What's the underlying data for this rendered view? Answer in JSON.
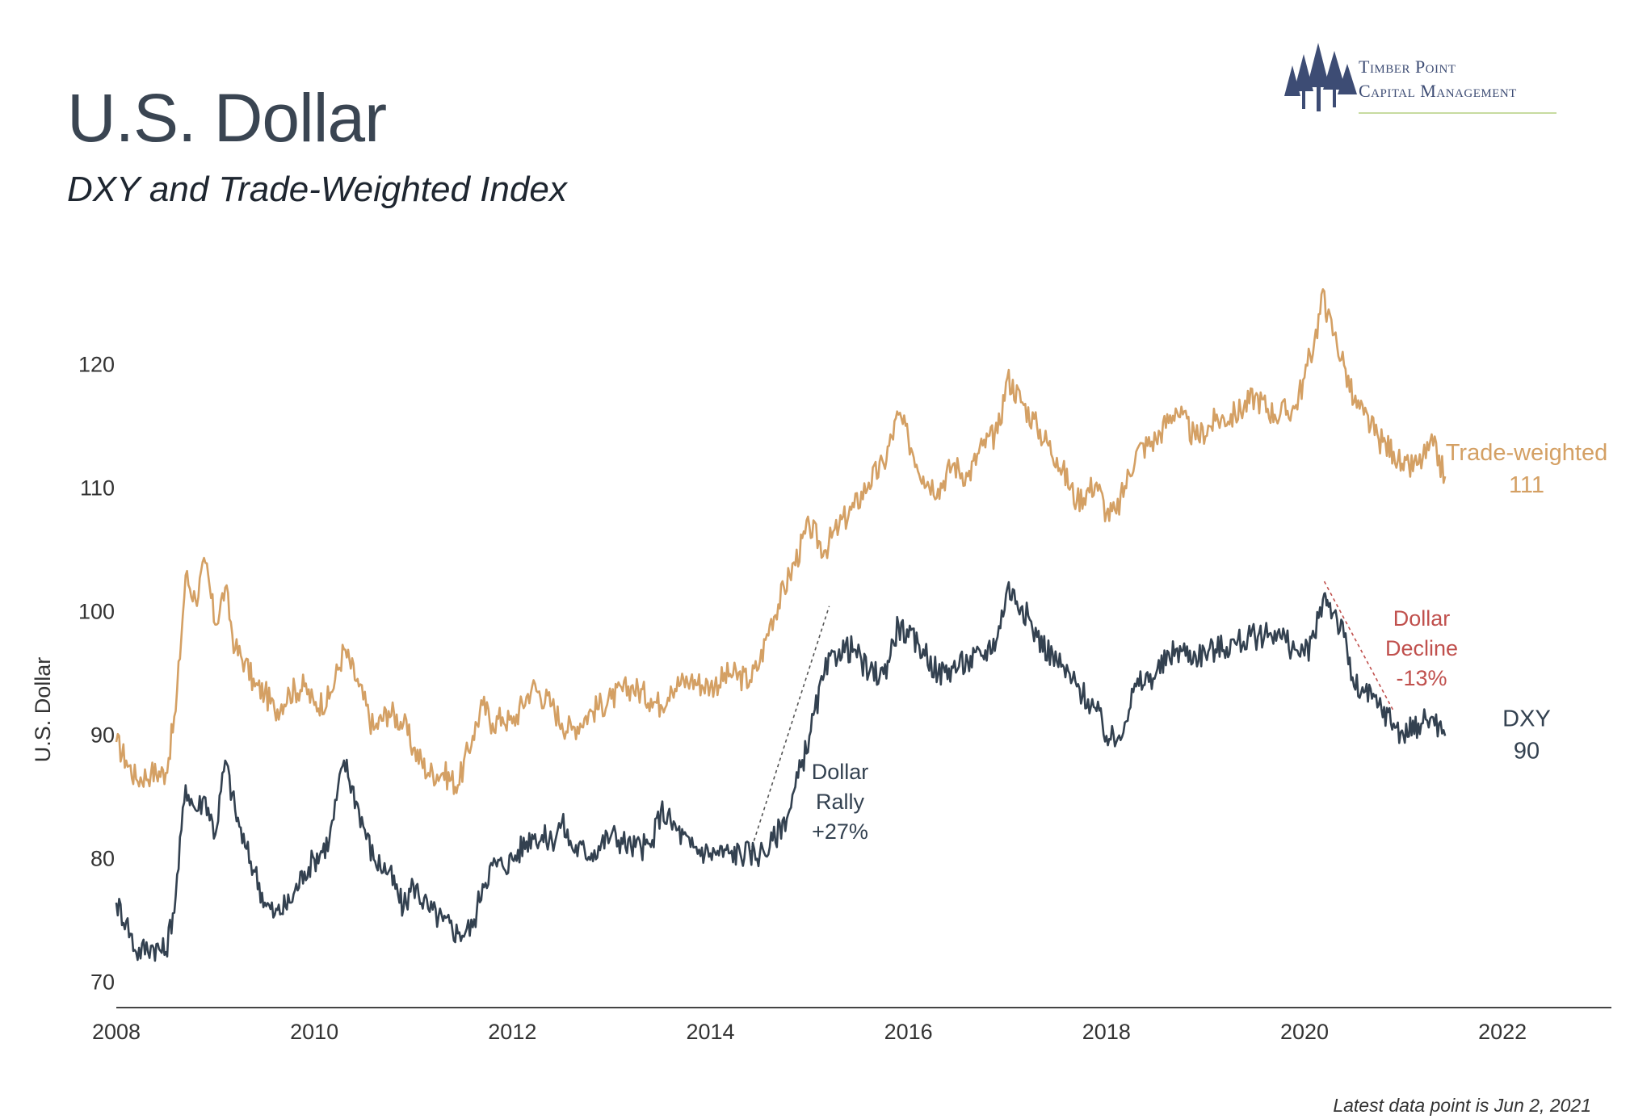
{
  "header": {
    "title": "U.S. Dollar",
    "subtitle": "DXY and Trade-Weighted Index"
  },
  "logo": {
    "line1": "Timber Point",
    "line2": "Capital Management",
    "icon": "pine-trees-icon"
  },
  "footnote": "Latest data point is Jun 2, 2021",
  "colors": {
    "trade_weighted": "#d4a064",
    "dxy": "#334150",
    "decline_annotation": "#c0504d",
    "axis": "#555555"
  },
  "chart_data": {
    "type": "line",
    "title": "U.S. Dollar",
    "subtitle": "DXY and Trade-Weighted Index",
    "xlabel": "",
    "ylabel": "U.S. Dollar",
    "xlim": [
      2008,
      2023.1
    ],
    "ylim": [
      68,
      128
    ],
    "yticks": [
      70,
      80,
      90,
      100,
      110,
      120
    ],
    "xticks": [
      2008,
      2010,
      2012,
      2014,
      2016,
      2018,
      2020,
      2022
    ],
    "grid": false,
    "x": [
      2008.0,
      2008.1,
      2008.2,
      2008.35,
      2008.5,
      2008.6,
      2008.7,
      2008.8,
      2008.9,
      2009.0,
      2009.1,
      2009.2,
      2009.3,
      2009.4,
      2009.5,
      2009.6,
      2009.75,
      2009.9,
      2010.0,
      2010.15,
      2010.3,
      2010.45,
      2010.6,
      2010.75,
      2010.9,
      2011.0,
      2011.15,
      2011.3,
      2011.45,
      2011.6,
      2011.7,
      2011.8,
      2011.9,
      2012.0,
      2012.2,
      2012.4,
      2012.5,
      2012.6,
      2012.8,
      2013.0,
      2013.2,
      2013.4,
      2013.5,
      2013.6,
      2013.8,
      2014.0,
      2014.2,
      2014.4,
      2014.5,
      2014.6,
      2014.8,
      2015.0,
      2015.15,
      2015.3,
      2015.45,
      2015.6,
      2015.75,
      2015.9,
      2016.0,
      2016.15,
      2016.3,
      2016.45,
      2016.6,
      2016.75,
      2016.9,
      2017.0,
      2017.15,
      2017.3,
      2017.5,
      2017.7,
      2017.9,
      2018.0,
      2018.1,
      2018.3,
      2018.5,
      2018.7,
      2018.9,
      2019.1,
      2019.3,
      2019.5,
      2019.7,
      2019.9,
      2020.0,
      2020.1,
      2020.2,
      2020.23,
      2020.3,
      2020.4,
      2020.5,
      2020.6,
      2020.75,
      2020.9,
      2021.0,
      2021.15,
      2021.3,
      2021.42
    ],
    "series": [
      {
        "name": "Trade-weighted",
        "label_value": "111",
        "values": [
          89.5,
          88,
          86.5,
          87,
          87,
          92,
          103,
          101,
          104,
          99,
          102,
          97,
          96,
          94,
          93.5,
          92,
          93.5,
          94,
          92.5,
          93,
          97,
          94,
          90.5,
          92,
          91,
          89,
          87,
          87,
          86,
          90,
          92.5,
          91,
          91.5,
          91,
          94,
          92.5,
          91,
          90.5,
          92,
          93,
          94,
          93,
          92.5,
          94,
          94.5,
          94,
          95,
          94.5,
          96,
          99,
          103,
          107,
          105,
          107,
          108.5,
          110.5,
          112,
          116,
          114,
          111,
          110,
          112,
          111,
          113.5,
          114.5,
          119,
          117,
          115,
          112.5,
          109,
          110.5,
          108,
          108,
          113,
          114,
          116.5,
          114,
          115.5,
          116,
          117.5,
          116,
          116.5,
          119,
          122,
          126,
          124,
          122.5,
          120,
          117,
          116,
          114,
          113,
          111.5,
          112,
          113.5,
          111
        ]
      },
      {
        "name": "DXY",
        "label_value": "90",
        "values": [
          76.5,
          75,
          72.5,
          73,
          72.5,
          77,
          86,
          84,
          85,
          82,
          88,
          84,
          81,
          79,
          76.5,
          75.5,
          76.5,
          79,
          80,
          81.5,
          88,
          84,
          80,
          79,
          76,
          78,
          76,
          75,
          74,
          74.5,
          78,
          79.5,
          79.5,
          80,
          82,
          81.5,
          83,
          81,
          80.5,
          82,
          81,
          81,
          84,
          83,
          81,
          80.5,
          80.5,
          80.5,
          80.5,
          81,
          84,
          90,
          95,
          97,
          97,
          95,
          95,
          99,
          98,
          97,
          95,
          95.5,
          96,
          96.5,
          98,
          102,
          100.5,
          98,
          96,
          94,
          92,
          90,
          89.5,
          94,
          95,
          97,
          96.5,
          97,
          97.5,
          98,
          98.5,
          97,
          96.5,
          98,
          101.5,
          101,
          100,
          98,
          94,
          93.5,
          92.5,
          91,
          90,
          91,
          91.5,
          90
        ]
      }
    ],
    "annotations": [
      {
        "id": "rally",
        "lines": [
          "Dollar",
          "Rally",
          "+27%"
        ],
        "x_start": 2014.4,
        "y_start": 80.5,
        "x_end": 2015.2,
        "y_end": 100.5
      },
      {
        "id": "decline",
        "lines": [
          "Dollar",
          "Decline",
          "-13%"
        ],
        "x_start": 2020.2,
        "y_start": 102.5,
        "x_end": 2020.9,
        "y_end": 92.0
      }
    ]
  }
}
